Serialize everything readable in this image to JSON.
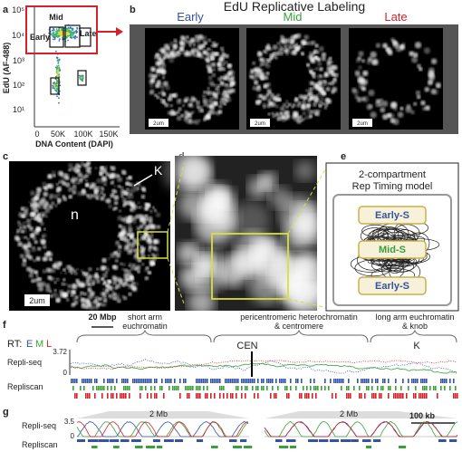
{
  "panels": {
    "a": {
      "label": "a",
      "y_axis_label": "EdU (AF-488)",
      "x_axis_label": "DNA Content (DAPI)",
      "y_tick_labels": [
        "10⁵",
        "10⁴",
        "10³",
        "10²",
        "10¹"
      ],
      "x_tick_labels": [
        "0",
        "50K",
        "100K",
        "150K"
      ],
      "gates": [
        "Mid",
        "Early",
        "Late"
      ]
    },
    "b": {
      "label": "b",
      "title": "EdU Replicative Labeling",
      "columns": [
        "Early",
        "Mid",
        "Late"
      ],
      "scale_bar": "2um"
    },
    "c": {
      "label": "c",
      "knob": "K",
      "nucleolus": "n",
      "scale_bar": "2um"
    },
    "d": {
      "label": "d"
    },
    "e": {
      "label": "e",
      "title_lines": [
        "2-compartment",
        "Rep Timing model"
      ],
      "compartments": [
        "Early-S",
        "Mid-S",
        "Early-S"
      ]
    },
    "f": {
      "label": "f",
      "scale_bar": "20 Mbp",
      "regions": [
        [
          "short arm",
          "euchromatin"
        ],
        [
          "pericentromeric heterochromatin",
          "& centromere"
        ],
        [
          "long arm euchromatin",
          "& knob"
        ]
      ],
      "rt_label": "RT:",
      "rt_phases": [
        "E",
        "M",
        "L"
      ],
      "y_max": "3.72",
      "y_min": "0",
      "rows": [
        "Repli-seq",
        "Repliscan"
      ],
      "centromere": "CEN",
      "knob": "K"
    },
    "g": {
      "label": "g",
      "rows": [
        "Repli-seq",
        "Repliscan"
      ],
      "y_max": "3.5",
      "y_min": "0",
      "zoom_labels": [
        "2 Mb",
        "2 Mb"
      ],
      "scale_bar": "100 kb"
    }
  }
}
